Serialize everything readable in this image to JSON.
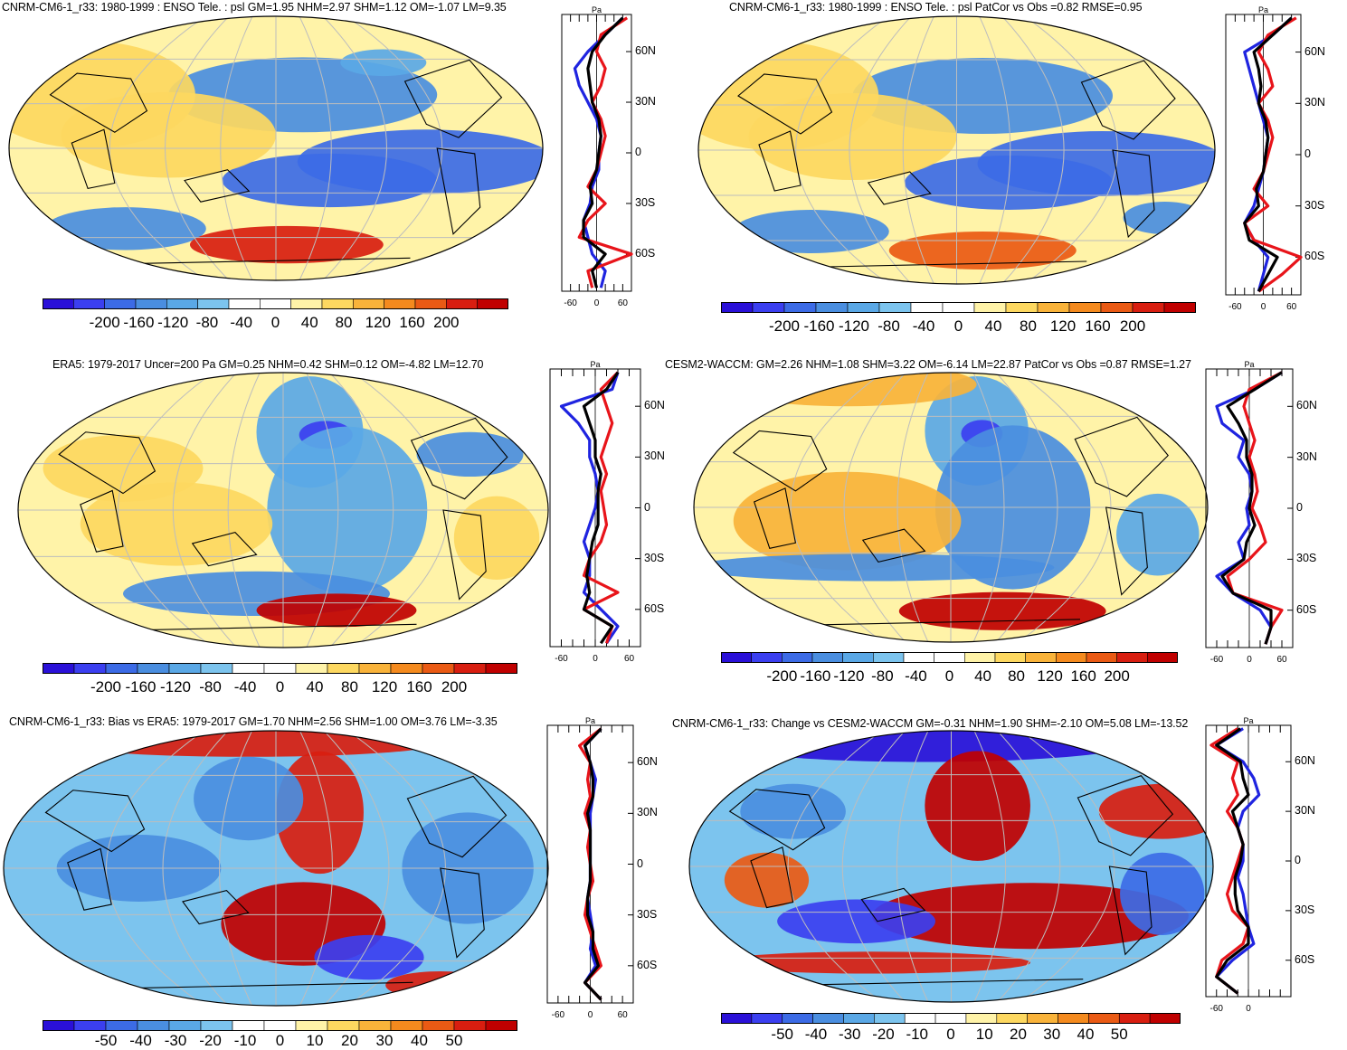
{
  "colors": {
    "model_line": "#e8141a",
    "obs_line": "#1f24e0",
    "mean_line": "#000000",
    "scale": [
      "#2a10d8",
      "#3b3ff0",
      "#3c6be6",
      "#4a8ee0",
      "#5aa8e6",
      "#7cc4ee",
      "#ffffff",
      "#ffffff",
      "#fff3a8",
      "#fdd860",
      "#f9b33a",
      "#f48a1e",
      "#ea5a14",
      "#d81e10",
      "#c00000"
    ]
  },
  "profile_common": {
    "unit": "Pa",
    "lat_ticks": [
      "60N",
      "30N",
      "0",
      "30S",
      "60S"
    ],
    "lat_values": [
      60,
      30,
      0,
      -30,
      -60
    ]
  },
  "panels": [
    {
      "title": "CNRM-CM6-1_r33: 1980-1999 : ENSO Tele. : psl GM=1.95 NHM=2.97 SHM=1.12 OM=-1.07 LM=9.35",
      "colorbar_labels": [
        "-200",
        "-160",
        "-120",
        "-80",
        "-40",
        "0",
        "40",
        "80",
        "120",
        "160",
        "200"
      ],
      "profile_x_labels": [
        "-60",
        "0",
        "60"
      ]
    },
    {
      "title": "CNRM-CM6-1_r33: 1980-1999 : ENSO Tele. : psl PatCor vs Obs =0.82 RMSE=0.95",
      "colorbar_labels": [
        "-200",
        "-160",
        "-120",
        "-80",
        "-40",
        "0",
        "40",
        "80",
        "120",
        "160",
        "200"
      ],
      "profile_x_labels": [
        "-60",
        "0",
        "60"
      ]
    },
    {
      "title": "ERA5: 1979-2017 Uncer=200 Pa GM=0.25 NHM=0.42 SHM=0.12 OM=-4.82 LM=12.70",
      "colorbar_labels": [
        "-200",
        "-160",
        "-120",
        "-80",
        "-40",
        "0",
        "40",
        "80",
        "120",
        "160",
        "200"
      ],
      "profile_x_labels": [
        "-60",
        "0",
        "60"
      ]
    },
    {
      "title": "CESM2-WACCM: GM=2.26 NHM=1.08 SHM=3.22 OM=-6.14 LM=22.87 PatCor vs Obs =0.87 RMSE=1.27",
      "colorbar_labels": [
        "-200",
        "-160",
        "-120",
        "-80",
        "-40",
        "0",
        "40",
        "80",
        "120",
        "160",
        "200"
      ],
      "profile_x_labels": [
        "-60",
        "0",
        "60"
      ]
    },
    {
      "title": "CNRM-CM6-1_r33: Bias vs ERA5: 1979-2017 GM=1.70 NHM=2.56 SHM=1.00 OM=3.76 LM=-3.35",
      "colorbar_labels": [
        "-50",
        "-40",
        "-30",
        "-20",
        "-10",
        "0",
        "10",
        "20",
        "30",
        "40",
        "50"
      ],
      "profile_x_labels": [
        "-60",
        "0",
        "60"
      ]
    },
    {
      "title": "CNRM-CM6-1_r33: Change vs CESM2-WACCM GM=-0.31 NHM=1.90 SHM=-2.10 OM=5.08 LM=-13.52",
      "colorbar_labels": [
        "-50",
        "-40",
        "-30",
        "-20",
        "-10",
        "0",
        "10",
        "20",
        "30",
        "40",
        "50"
      ],
      "profile_x_labels": [
        "-60",
        "0"
      ]
    }
  ],
  "chart_data": [
    {
      "type": "heatmap",
      "title": "CNRM-CM6-1_r33: 1980-1999 : ENSO Tele. : psl GM=1.95 NHM=2.97 SHM=1.12 OM=-1.07 LM=9.35",
      "colorbar_range": [
        -200,
        200
      ],
      "unit": "Pa",
      "profile": {
        "type": "line",
        "lat": [
          80,
          70,
          60,
          50,
          40,
          30,
          20,
          10,
          0,
          -10,
          -20,
          -30,
          -40,
          -50,
          -60,
          -70,
          -80
        ],
        "series": [
          {
            "values": [
              60,
              20,
              -20,
              -50,
              -40,
              -20,
              0,
              10,
              5,
              5,
              -10,
              -15,
              -30,
              -20,
              -10,
              20,
              10
            ]
          },
          {
            "values": [
              70,
              10,
              0,
              20,
              10,
              -10,
              10,
              20,
              10,
              0,
              -20,
              20,
              -20,
              -40,
              80,
              -20,
              -10
            ]
          },
          {
            "values": [
              60,
              20,
              -10,
              -20,
              -15,
              -10,
              5,
              10,
              5,
              0,
              -15,
              -10,
              -30,
              -30,
              20,
              -10,
              0
            ]
          }
        ]
      }
    },
    {
      "type": "heatmap",
      "title": "CNRM-CM6-1_r33: 1980-1999 : ENSO Tele. : psl PatCor vs Obs =0.82 RMSE=0.95",
      "colorbar_range": [
        -200,
        200
      ],
      "unit": "Pa",
      "profile": {
        "type": "line",
        "lat": [
          80,
          70,
          60,
          50,
          40,
          30,
          20,
          10,
          0,
          -10,
          -20,
          -30,
          -40,
          -50,
          -60,
          -70,
          -80
        ],
        "series": [
          {
            "values": [
              60,
              20,
              -40,
              -30,
              -20,
              -10,
              0,
              10,
              5,
              0,
              -10,
              -20,
              -40,
              -20,
              10,
              0,
              -10
            ]
          },
          {
            "values": [
              70,
              10,
              -10,
              10,
              20,
              -10,
              10,
              20,
              10,
              0,
              -20,
              10,
              -40,
              -20,
              80,
              40,
              -10
            ]
          },
          {
            "values": [
              60,
              20,
              -20,
              -10,
              -5,
              -10,
              5,
              10,
              5,
              0,
              -15,
              -10,
              -40,
              -30,
              30,
              10,
              -10
            ]
          }
        ]
      }
    },
    {
      "type": "heatmap",
      "title": "ERA5: 1979-2017 Uncer=200 Pa GM=0.25 NHM=0.42 SHM=0.12 OM=-4.82 LM=12.70",
      "colorbar_range": [
        -200,
        200
      ],
      "unit": "Pa",
      "profile": {
        "type": "line",
        "lat": [
          80,
          70,
          60,
          50,
          40,
          30,
          20,
          10,
          0,
          -10,
          -20,
          -30,
          -40,
          -50,
          -60,
          -70,
          -80
        ],
        "series": [
          {
            "values": [
              40,
              30,
              -60,
              -30,
              -10,
              -10,
              0,
              5,
              0,
              -10,
              -20,
              -10,
              -10,
              -20,
              10,
              40,
              20
            ]
          },
          {
            "values": [
              40,
              10,
              20,
              30,
              20,
              10,
              20,
              10,
              15,
              20,
              10,
              -10,
              -20,
              40,
              -20,
              30,
              20
            ]
          },
          {
            "values": [
              40,
              20,
              -20,
              -10,
              0,
              0,
              10,
              5,
              5,
              5,
              -5,
              -10,
              -15,
              -10,
              -20,
              30,
              10
            ]
          }
        ]
      }
    },
    {
      "type": "heatmap",
      "title": "CESM2-WACCM: GM=2.26 NHM=1.08 SHM=3.22 OM=-6.14 LM=22.87 PatCor vs Obs =0.87 RMSE=1.27",
      "colorbar_range": [
        -200,
        200
      ],
      "unit": "Pa",
      "profile": {
        "type": "line",
        "lat": [
          80,
          70,
          60,
          50,
          40,
          30,
          20,
          10,
          0,
          -10,
          -20,
          -30,
          -40,
          -50,
          -60,
          -70,
          -80
        ],
        "series": [
          {
            "values": [
              60,
              10,
              -60,
              -50,
              -10,
              -20,
              0,
              5,
              -5,
              0,
              -20,
              -10,
              -60,
              -30,
              20,
              40,
              30
            ]
          },
          {
            "values": [
              60,
              0,
              -10,
              0,
              10,
              0,
              10,
              15,
              5,
              20,
              30,
              0,
              -40,
              -30,
              60,
              40,
              30
            ]
          },
          {
            "values": [
              60,
              10,
              -40,
              -20,
              -5,
              -5,
              5,
              5,
              0,
              10,
              -5,
              -10,
              -50,
              -30,
              40,
              40,
              30
            ]
          }
        ]
      }
    },
    {
      "type": "heatmap",
      "title": "CNRM-CM6-1_r33: Bias vs ERA5: 1979-2017 GM=1.70 NHM=2.56 SHM=1.00 OM=3.76 LM=-3.35",
      "colorbar_range": [
        -50,
        50
      ],
      "unit": "Pa",
      "profile": {
        "type": "line",
        "lat": [
          80,
          70,
          60,
          50,
          40,
          30,
          20,
          10,
          0,
          -10,
          -20,
          -30,
          -40,
          -50,
          -60,
          -70,
          -80
        ],
        "series": [
          {
            "values": [
              20,
              -10,
              0,
              10,
              5,
              0,
              0,
              0,
              0,
              0,
              -5,
              0,
              5,
              0,
              10,
              -10,
              20
            ]
          },
          {
            "values": [
              20,
              -20,
              0,
              -5,
              0,
              -10,
              0,
              -5,
              0,
              5,
              -5,
              -10,
              0,
              10,
              20,
              -10,
              20
            ]
          },
          {
            "values": [
              20,
              -10,
              0,
              5,
              5,
              -5,
              0,
              0,
              0,
              0,
              -5,
              -5,
              5,
              5,
              15,
              -10,
              20
            ]
          }
        ]
      }
    },
    {
      "type": "heatmap",
      "title": "CNRM-CM6-1_r33: Change vs CESM2-WACCM GM=-0.31 NHM=1.90 SHM=-2.10 OM=5.08 LM=-13.52",
      "colorbar_range": [
        -50,
        50
      ],
      "unit": "Pa",
      "profile": {
        "type": "line",
        "lat": [
          80,
          70,
          60,
          50,
          40,
          30,
          20,
          10,
          0,
          -10,
          -20,
          -30,
          -40,
          -50,
          -60,
          -70,
          -80
        ],
        "series": [
          {
            "values": [
              -10,
              -60,
              -10,
              10,
              20,
              -10,
              -20,
              -10,
              -10,
              -20,
              -10,
              -5,
              0,
              10,
              -30,
              -60,
              -20
            ]
          },
          {
            "values": [
              -20,
              -70,
              -20,
              -30,
              -20,
              -40,
              -20,
              -10,
              -20,
              -30,
              -40,
              -30,
              0,
              -10,
              -50,
              -60,
              -20
            ]
          },
          {
            "values": [
              -15,
              -60,
              -15,
              -10,
              0,
              -30,
              -20,
              -10,
              -15,
              -25,
              -25,
              -20,
              0,
              0,
              -40,
              -60,
              -20
            ]
          }
        ]
      }
    }
  ]
}
